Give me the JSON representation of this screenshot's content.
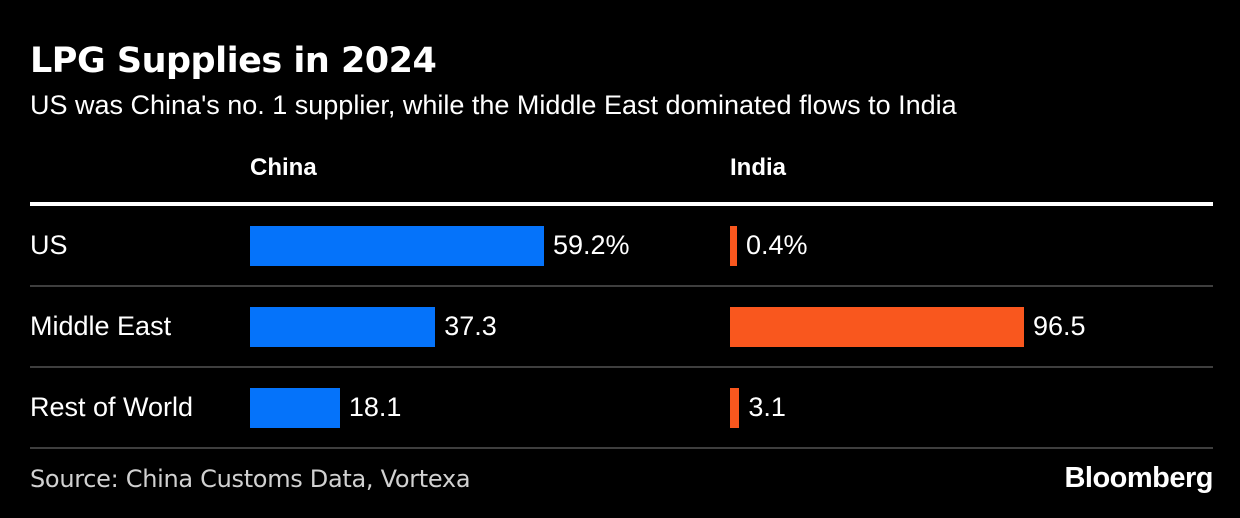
{
  "header": {
    "title": "LPG Supplies in 2024",
    "subtitle": "US was China's no. 1 supplier, while the Middle East dominated flows to India"
  },
  "chart_data": {
    "type": "bar",
    "orientation": "horizontal",
    "title": "LPG Supplies in 2024",
    "subtitle": "US was China's no. 1 supplier, while the Middle East dominated flows to India",
    "categories": [
      "US",
      "Middle East",
      "Rest of World"
    ],
    "series": [
      {
        "name": "China",
        "color": "#0573fa",
        "values": [
          59.2,
          37.3,
          18.1
        ],
        "labels": [
          "59.2%",
          "37.3",
          "18.1"
        ]
      },
      {
        "name": "India",
        "color": "#f9571e",
        "values": [
          0.4,
          96.5,
          3.1
        ],
        "labels": [
          "0.4%",
          "96.5",
          "3.1"
        ]
      }
    ],
    "unit": "percent share",
    "layout_hints": {
      "columns_normalized_to_own_max": true,
      "grid": "off",
      "value_labels": "right of bar",
      "background": "#000000",
      "divider_color": "#3e3e3e",
      "header_rule_color": "#ffffff"
    }
  },
  "footer": {
    "source": "Source: China Customs Data, Vortexa",
    "logo": "Bloomberg"
  }
}
